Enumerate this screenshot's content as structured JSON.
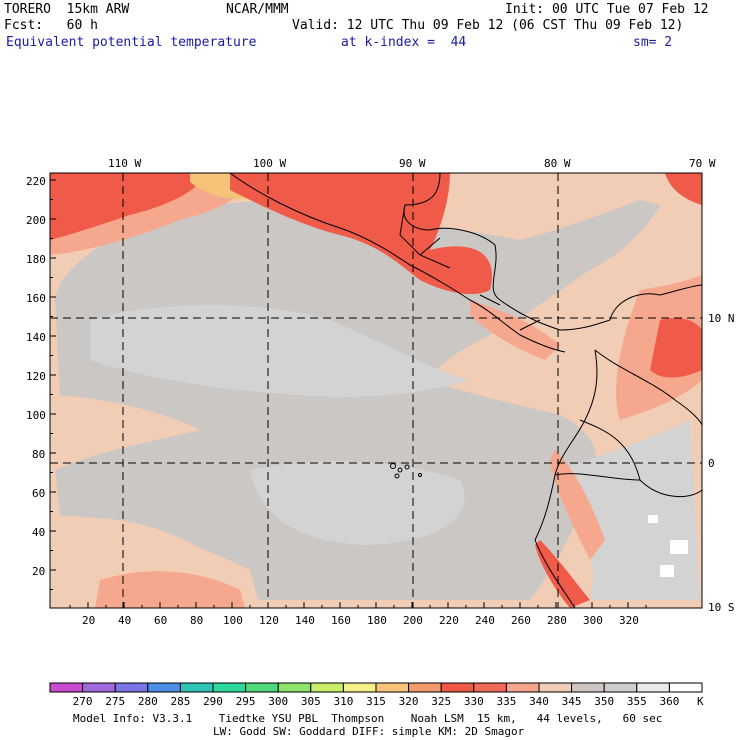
{
  "header": {
    "model": "TORERO  15km ARW",
    "center": "NCAR/MMM",
    "init": "Init: 00 UTC Tue 07 Feb 12",
    "fcst": "Fcst:   60 h",
    "valid": "Valid: 12 UTC Thu 09 Feb 12 (06 CST Thu 09 Feb 12)",
    "field": "Equivalent potential temperature",
    "level": "at k-index =  44",
    "smooth": "sm= 2"
  },
  "axes": {
    "top_lon_labels": [
      "110 W",
      "100 W",
      "90 W",
      "80 W",
      "70 W"
    ],
    "right_lat_labels": [
      "10 N",
      "0",
      "10 S"
    ],
    "left_y_labels": [
      "220",
      "200",
      "180",
      "160",
      "140",
      "120",
      "100",
      "80",
      "60",
      "40",
      "20"
    ],
    "bottom_x_labels": [
      "20",
      "40",
      "60",
      "80",
      "100",
      "120",
      "140",
      "160",
      "180",
      "200",
      "220",
      "240",
      "260",
      "280",
      "300",
      "320"
    ]
  },
  "colorbar": {
    "unit": "K",
    "levels": [
      "270",
      "275",
      "280",
      "285",
      "290",
      "295",
      "300",
      "305",
      "310",
      "315",
      "320",
      "325",
      "330",
      "335",
      "340",
      "345",
      "350",
      "355",
      "360"
    ],
    "colors": [
      "#c84ccf",
      "#a169dc",
      "#7b74e6",
      "#4c8de6",
      "#2ec4b8",
      "#2bd89a",
      "#4fd97a",
      "#8ee36a",
      "#c8ee6a",
      "#f6f08a",
      "#f7c478",
      "#f29a6a",
      "#ef5a46",
      "#f06a58",
      "#f4a58c",
      "#f0cdb6",
      "#cfc7c2",
      "#cfcfcf",
      "#e9e9e9",
      "#ffffff"
    ]
  },
  "footer": {
    "line1": "Model Info: V3.3.1    Tiedtke YSU PBL  Thompson    Noah LSM  15 km,   44 levels,   60 sec",
    "line2": "LW: Godd SW: Goddard DIFF: simple KM: 2D Smagor"
  },
  "legend_colors": {
    "background": "#f2cdb5",
    "gray": "#cbc7c5",
    "lightgray": "#d2d2d2",
    "salmon": "#f5a88d",
    "red": "#f05a48",
    "orange": "#f5c278",
    "yellow": "#f6ee86",
    "white": "#ffffff"
  }
}
